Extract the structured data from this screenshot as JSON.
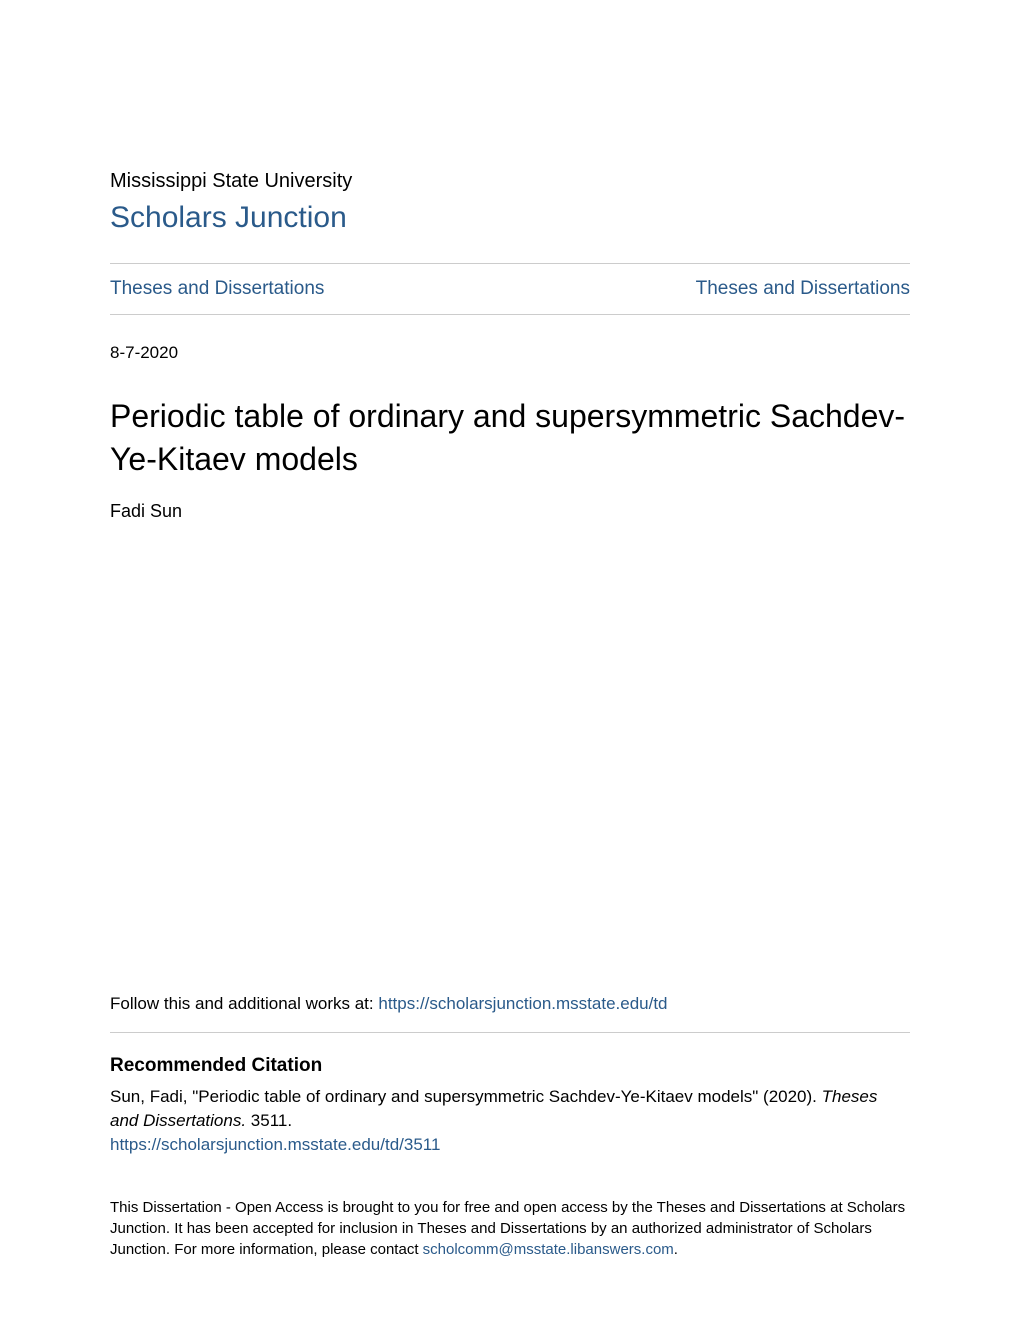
{
  "header": {
    "institution": "Mississippi State University",
    "repository": "Scholars Junction"
  },
  "breadcrumb": {
    "left": "Theses and Dissertations",
    "right": "Theses and Dissertations"
  },
  "document": {
    "date": "8-7-2020",
    "title": "Periodic table of ordinary and supersymmetric Sachdev-Ye-Kitaev models",
    "author": "Fadi Sun"
  },
  "follow": {
    "prefix": "Follow this and additional works at: ",
    "link": "https://scholarsjunction.msstate.edu/td"
  },
  "citation": {
    "heading": "Recommended Citation",
    "text_part1": "Sun, Fadi, \"Periodic table of ordinary and supersymmetric Sachdev-Ye-Kitaev models\" (2020). ",
    "text_italic": "Theses and Dissertations.",
    "text_part2": " 3511.",
    "link": "https://scholarsjunction.msstate.edu/td/3511"
  },
  "footer": {
    "text_part1": "This Dissertation - Open Access is brought to you for free and open access by the Theses and Dissertations at Scholars Junction. It has been accepted for inclusion in Theses and Dissertations by an authorized administrator of Scholars Junction. For more information, please contact ",
    "contact_link": "scholcomm@msstate.libanswers.com",
    "text_part2": "."
  },
  "colors": {
    "link": "#2a5a8a",
    "text": "#000000",
    "border": "#cccccc",
    "background": "#ffffff"
  }
}
